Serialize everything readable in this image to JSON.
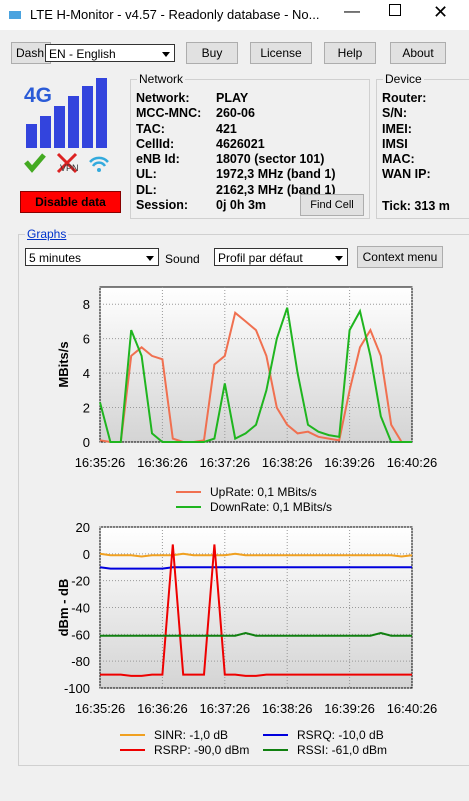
{
  "window": {
    "title": "LTE H-Monitor - v4.57 - Readonly database - No..."
  },
  "toolbar": {
    "dash": "Dash",
    "language": "EN - English",
    "buttons": [
      "Buy",
      "License",
      "Help",
      "About"
    ]
  },
  "status": {
    "network_type": "4G",
    "vpn": "VPN",
    "disable": "Disable data"
  },
  "network": {
    "title": "Network",
    "find_cell": "Find Cell",
    "rows": [
      [
        "Network:",
        "PLAY"
      ],
      [
        "MCC-MNC:",
        "260-06"
      ],
      [
        "TAC:",
        "421"
      ],
      [
        "CellId:",
        "4626021"
      ],
      [
        "eNB Id:",
        "18070 (sector 101)"
      ],
      [
        "UL:",
        "1972,3 MHz (band 1)"
      ],
      [
        "DL:",
        "2162,3 MHz (band 1)"
      ],
      [
        "Session:",
        "0j 0h 3m"
      ]
    ]
  },
  "device": {
    "title": "Device",
    "rows": [
      "Router:",
      "S/N:",
      "IMEI:",
      "IMSI",
      "MAC:",
      "WAN IP:"
    ],
    "tick": "Tick: 313 m"
  },
  "graphs": {
    "title": "Graphs",
    "period": "5 minutes",
    "sound": "Sound",
    "profile": "Profil par défaut",
    "context": "Context menu"
  },
  "chart_data": [
    {
      "type": "line",
      "ylabel": "MBits/s",
      "grid": true,
      "ylim": [
        0,
        9
      ],
      "yticks": [
        0,
        2,
        4,
        6,
        8
      ],
      "x": [
        "16:35:26",
        null,
        null,
        null,
        null,
        null,
        "16:36:26",
        null,
        null,
        null,
        null,
        null,
        "16:37:26",
        null,
        null,
        null,
        null,
        null,
        "16:38:26",
        null,
        null,
        null,
        null,
        null,
        "16:39:26",
        null,
        null,
        null,
        null,
        null,
        "16:40:26"
      ],
      "series": [
        {
          "name": "UpRate: 0,1 MBits/s",
          "color": "#f07050",
          "values": [
            0.1,
            0,
            0,
            5,
            5.5,
            5,
            4.8,
            0.2,
            0,
            0,
            0.1,
            4.5,
            5,
            7.5,
            7,
            6.5,
            5,
            2,
            1,
            0.5,
            0.6,
            0.3,
            0.2,
            0.1,
            3,
            5.5,
            6.5,
            5,
            1,
            0,
            0
          ]
        },
        {
          "name": "DownRate: 0,1 MBits/s",
          "color": "#1fb51f",
          "values": [
            2.3,
            0,
            0,
            6.5,
            5,
            0.5,
            0,
            0,
            0,
            0,
            0,
            0.2,
            3.4,
            0.2,
            0.5,
            1,
            3,
            6,
            7.8,
            4,
            1,
            0.6,
            0.4,
            0.3,
            6.5,
            7.6,
            5,
            1.5,
            0,
            0,
            0
          ]
        }
      ]
    },
    {
      "type": "line",
      "ylabel": "dBm - dB",
      "grid": true,
      "ylim": [
        -100,
        20
      ],
      "yticks": [
        -100,
        -80,
        -60,
        -40,
        -20,
        0,
        20
      ],
      "x": [
        "16:35:26",
        null,
        null,
        null,
        null,
        null,
        "16:36:26",
        null,
        null,
        null,
        null,
        null,
        "16:37:26",
        null,
        null,
        null,
        null,
        null,
        "16:38:26",
        null,
        null,
        null,
        null,
        null,
        "16:39:26",
        null,
        null,
        null,
        null,
        null,
        "16:40:26"
      ],
      "series": [
        {
          "name": "SINR: -1,0 dB",
          "color": "#f0a020",
          "values": [
            0,
            -1,
            -1,
            -1,
            -2,
            -1,
            -1,
            -1,
            0,
            -1,
            -1,
            -1,
            -1,
            0,
            -1,
            -1,
            -1,
            -1,
            -1,
            -1,
            -1,
            -1,
            -1,
            -1,
            -1,
            -1,
            -1,
            -1,
            -1,
            -2,
            -1
          ]
        },
        {
          "name": "RSRQ: -10,0 dB",
          "color": "#0000dd",
          "values": [
            -10,
            -11,
            -11,
            -11,
            -11,
            -11,
            -11,
            -10,
            -10,
            -10,
            -10,
            -10,
            -10,
            -10,
            -10,
            -10,
            -10,
            -10,
            -10,
            -10,
            -10,
            -10,
            -10,
            -10,
            -10,
            -10,
            -10,
            -10,
            -10,
            -10,
            -10
          ]
        },
        {
          "name": "RSRP: -90,0 dBm",
          "color": "#ee0000",
          "values": [
            -90,
            -90,
            -90,
            -91,
            -91,
            -90,
            -90,
            7,
            -90,
            -90,
            -90,
            7,
            -90,
            -90,
            -91,
            -91,
            -90,
            -90,
            -90,
            -90,
            -90,
            -90,
            -90,
            -90,
            -90,
            -90,
            -90,
            -90,
            -90,
            -90,
            -90
          ]
        },
        {
          "name": "RSSI: -61,0 dBm",
          "color": "#108010",
          "values": [
            -61,
            -61,
            -61,
            -61,
            -61,
            -61,
            -61,
            -61,
            -61,
            -61,
            -61,
            -61,
            -61,
            -61,
            -59,
            -61,
            -61,
            -61,
            -61,
            -61,
            -61,
            -61,
            -61,
            -61,
            -61,
            -61,
            -61,
            -59,
            -61,
            -61,
            -61
          ]
        }
      ]
    }
  ]
}
